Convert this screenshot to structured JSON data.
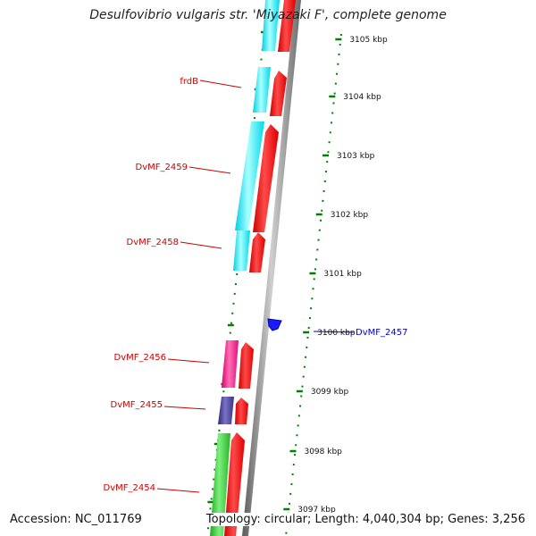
{
  "title": "Desulfovibrio vulgaris str. 'Miyazaki F', complete genome",
  "accession": "Accession: NC_011769",
  "topology": "Topology: circular; Length: 4,040,304 bp; Genes: 3,256",
  "colors": {
    "forward_strand": "#ff0000",
    "gene_cds": "#00ffff",
    "backbone": "#808080",
    "ticks": "#008000",
    "label_line": "#cc0000",
    "highlight": "#0000cc"
  },
  "ticks": [
    {
      "label": "3105 kbp"
    },
    {
      "label": "3104 kbp"
    },
    {
      "label": "3103 kbp"
    },
    {
      "label": "3102 kbp"
    },
    {
      "label": "3101 kbp"
    },
    {
      "label": "3100 kbp"
    },
    {
      "label": "3099 kbp"
    },
    {
      "label": "3098 kbp"
    },
    {
      "label": "3097 kbp"
    }
  ],
  "genes": [
    {
      "label": "frdB",
      "color": "#00ffff"
    },
    {
      "label": "DvMF_2459",
      "color": "#00ffff"
    },
    {
      "label": "DvMF_2458",
      "color": "#00ffff"
    },
    {
      "label": "DvMF_2457",
      "color": "#0000ff"
    },
    {
      "label": "DvMF_2456",
      "color": "#ff1493"
    },
    {
      "label": "DvMF_2455",
      "color": "#483d8b"
    },
    {
      "label": "DvMF_2454",
      "color": "#32cd32"
    }
  ]
}
